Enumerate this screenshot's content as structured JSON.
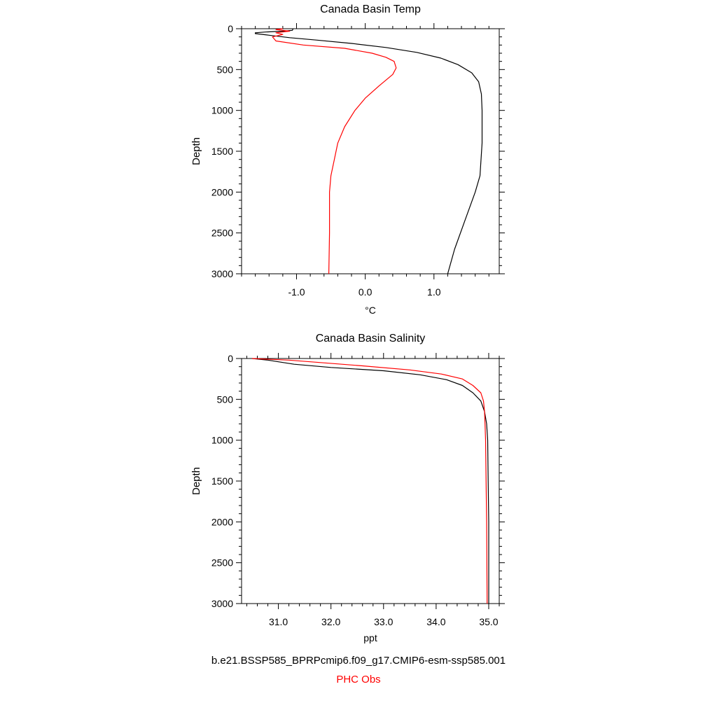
{
  "chart_data": [
    {
      "type": "line",
      "title": "Canada Basin Temp",
      "xlabel": "°C",
      "ylabel": "Depth",
      "xlim": [
        -1.8,
        1.95
      ],
      "ylim": [
        3000,
        0
      ],
      "y_inverted": true,
      "xticks": [
        -1.0,
        0.0,
        1.0
      ],
      "xtick_labels": [
        "-1.0",
        "0.0",
        "1.0"
      ],
      "yticks": [
        0,
        500,
        1000,
        1500,
        2000,
        2500,
        3000
      ],
      "ytick_labels": [
        "0",
        "500",
        "1000",
        "1500",
        "2000",
        "2500",
        "3000"
      ],
      "grid": false,
      "series": [
        {
          "name": "b.e21.BSSP585_BPRPcmip6.f09_g17.CMIP6-esm-ssp585.001",
          "color": "#000000",
          "points": [
            [
              -1.05,
              0
            ],
            [
              -1.06,
              20
            ],
            [
              -1.2,
              30
            ],
            [
              -1.45,
              40
            ],
            [
              -1.6,
              50
            ],
            [
              -1.6,
              60
            ],
            [
              -1.4,
              80
            ],
            [
              -1.1,
              110
            ],
            [
              -0.7,
              140
            ],
            [
              -0.2,
              180
            ],
            [
              0.3,
              230
            ],
            [
              0.75,
              290
            ],
            [
              1.1,
              360
            ],
            [
              1.35,
              440
            ],
            [
              1.55,
              540
            ],
            [
              1.65,
              650
            ],
            [
              1.69,
              800
            ],
            [
              1.7,
              1000
            ],
            [
              1.7,
              1400
            ],
            [
              1.67,
              1800
            ],
            [
              1.6,
              2000
            ],
            [
              1.45,
              2350
            ],
            [
              1.3,
              2700
            ],
            [
              1.2,
              3000
            ]
          ]
        },
        {
          "name": "PHC Obs",
          "color": "#ff0000",
          "points": [
            [
              -1.2,
              0
            ],
            [
              -1.3,
              10
            ],
            [
              -1.1,
              30
            ],
            [
              -1.3,
              50
            ],
            [
              -1.2,
              70
            ],
            [
              -1.35,
              100
            ],
            [
              -1.3,
              150
            ],
            [
              -0.9,
              200
            ],
            [
              -0.3,
              240
            ],
            [
              0.1,
              300
            ],
            [
              0.3,
              350
            ],
            [
              0.42,
              400
            ],
            [
              0.45,
              480
            ],
            [
              0.4,
              560
            ],
            [
              0.2,
              700
            ],
            [
              0.0,
              850
            ],
            [
              -0.15,
              1000
            ],
            [
              -0.3,
              1200
            ],
            [
              -0.4,
              1400
            ],
            [
              -0.45,
              1600
            ],
            [
              -0.5,
              1800
            ],
            [
              -0.52,
              2000
            ],
            [
              -0.52,
              2500
            ],
            [
              -0.53,
              3000
            ]
          ]
        }
      ]
    },
    {
      "type": "line",
      "title": "Canada Basin Salinity",
      "xlabel": "ppt",
      "ylabel": "Depth",
      "xlim": [
        30.3,
        35.2
      ],
      "ylim": [
        3000,
        0
      ],
      "y_inverted": true,
      "xticks": [
        31.0,
        32.0,
        33.0,
        34.0,
        35.0
      ],
      "xtick_labels": [
        "31.0",
        "32.0",
        "33.0",
        "34.0",
        "35.0"
      ],
      "yticks": [
        0,
        500,
        1000,
        1500,
        2000,
        2500,
        3000
      ],
      "ytick_labels": [
        "0",
        "500",
        "1000",
        "1500",
        "2000",
        "2500",
        "3000"
      ],
      "grid": false,
      "series": [
        {
          "name": "b.e21.BSSP585_BPRPcmip6.f09_g17.CMIP6-esm-ssp585.001",
          "color": "#000000",
          "points": [
            [
              30.5,
              0
            ],
            [
              30.8,
              20
            ],
            [
              31.0,
              40
            ],
            [
              31.3,
              70
            ],
            [
              32.0,
              110
            ],
            [
              33.0,
              150
            ],
            [
              33.7,
              200
            ],
            [
              34.2,
              260
            ],
            [
              34.5,
              330
            ],
            [
              34.7,
              420
            ],
            [
              34.85,
              520
            ],
            [
              34.92,
              650
            ],
            [
              34.96,
              800
            ],
            [
              34.98,
              1000
            ],
            [
              34.99,
              1500
            ],
            [
              35.0,
              2000
            ],
            [
              35.0,
              3000
            ]
          ]
        },
        {
          "name": "PHC Obs",
          "color": "#ff0000",
          "points": [
            [
              30.5,
              0
            ],
            [
              31.2,
              20
            ],
            [
              31.8,
              50
            ],
            [
              32.6,
              90
            ],
            [
              33.5,
              140
            ],
            [
              34.1,
              190
            ],
            [
              34.5,
              250
            ],
            [
              34.7,
              330
            ],
            [
              34.85,
              420
            ],
            [
              34.9,
              520
            ],
            [
              34.92,
              650
            ],
            [
              34.93,
              800
            ],
            [
              34.94,
              1000
            ],
            [
              34.95,
              1500
            ],
            [
              34.96,
              2000
            ],
            [
              34.97,
              3000
            ]
          ]
        }
      ]
    }
  ],
  "legend": {
    "model_label": "b.e21.BSSP585_BPRPcmip6.f09_g17.CMIP6-esm-ssp585.001",
    "obs_label": "PHC Obs",
    "model_color": "#000000",
    "obs_color": "#ff0000"
  }
}
